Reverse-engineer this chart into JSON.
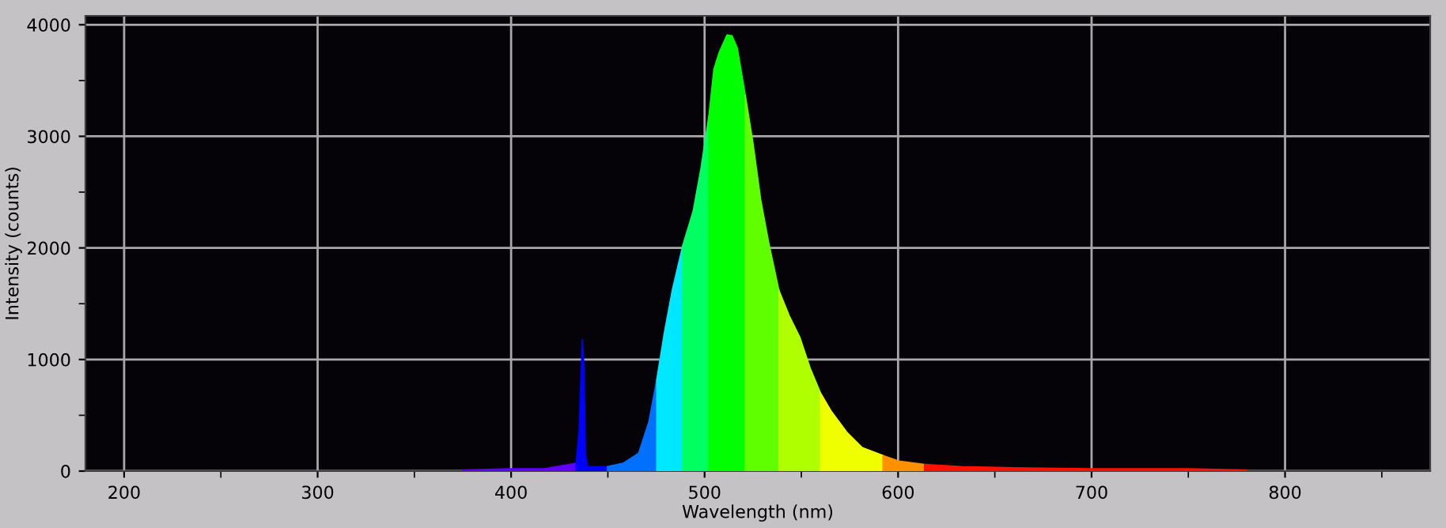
{
  "chart_data": {
    "type": "area",
    "xlabel": "Wavelength (nm)",
    "ylabel": "Intensity (counts)",
    "xlim": [
      180,
      875
    ],
    "ylim": [
      0,
      4080
    ],
    "xticks": [
      200,
      {
        "value": 250,
        "label": null
      },
      300,
      {
        "value": 350,
        "label": null
      },
      400,
      {
        "value": 450,
        "label": null
      },
      500,
      {
        "value": 550,
        "label": null
      },
      600,
      {
        "value": 650,
        "label": null
      },
      700,
      {
        "value": 750,
        "label": null
      },
      800,
      {
        "value": 850,
        "label": null
      }
    ],
    "yticks": [
      0,
      {
        "value": 500,
        "label": null
      },
      1000,
      {
        "value": 1500,
        "label": null
      },
      2000,
      {
        "value": 2500,
        "label": null
      },
      3000,
      {
        "value": 3500,
        "label": null
      },
      4000
    ],
    "grid": true,
    "series": [
      {
        "color": "#6000ff",
        "x": [
          375,
          400,
          417,
          433.6
        ],
        "values": [
          10,
          20,
          20,
          70
        ]
      },
      {
        "color": "#0000ff",
        "x": [
          433.6,
          435.2,
          436.8,
          437.6,
          438.4,
          439.5,
          449.7
        ],
        "values": [
          70,
          370,
          1180,
          960,
          160,
          40,
          40
        ]
      },
      {
        "color": "#0070ff",
        "x": [
          449.7,
          457.8,
          465.9,
          471.2,
          475.3
        ],
        "values": [
          40,
          70,
          160,
          440,
          820
        ]
      },
      {
        "color": "#00e8ff",
        "x": [
          475.3,
          479.3,
          483.3,
          488.7
        ],
        "values": [
          820,
          1250,
          1620,
          2020
        ]
      },
      {
        "color": "#00ff60",
        "x": [
          488.7,
          494.1,
          498.1,
          502.2
        ],
        "values": [
          2020,
          2330,
          2710,
          3180
        ]
      },
      {
        "color": "#00ff00",
        "x": [
          502.2,
          504.8,
          507.5,
          511.6,
          514.2,
          516.9,
          521.0
        ],
        "values": [
          3180,
          3600,
          3750,
          3910,
          3900,
          3790,
          3370
        ]
      },
      {
        "color": "#60ff00",
        "x": [
          521.0,
          525.0,
          529.0,
          533.1,
          538.4
        ],
        "values": [
          3370,
          2940,
          2430,
          2050,
          1620
        ]
      },
      {
        "color": "#b0ff00",
        "x": [
          538.4,
          543.8,
          549.2,
          554.6,
          559.9
        ],
        "values": [
          1620,
          1390,
          1200,
          920,
          700
        ]
      },
      {
        "color": "#f0ff00",
        "x": [
          559.9,
          565.3,
          573.4,
          581.5,
          592.2
        ],
        "values": [
          700,
          540,
          350,
          210,
          140
        ]
      },
      {
        "color": "#ff9000",
        "x": [
          592.2,
          600.3,
          613.7
        ],
        "values": [
          140,
          90,
          60
        ]
      },
      {
        "color": "#ff1000",
        "x": [
          613.7,
          632.5,
          659.4,
          700,
          750,
          780
        ],
        "values": [
          60,
          40,
          30,
          20,
          20,
          10
        ]
      }
    ]
  }
}
